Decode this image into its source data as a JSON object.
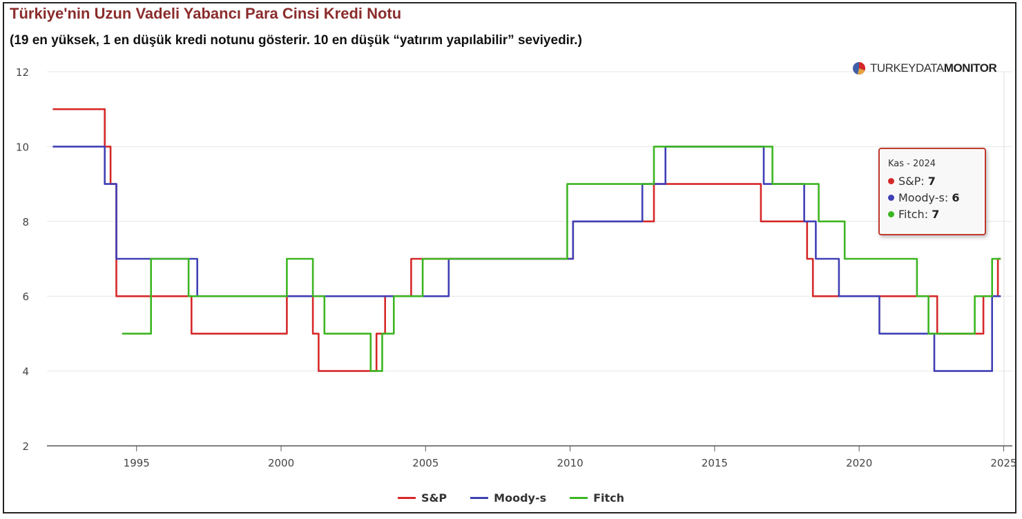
{
  "title": "Türkiye'nin Uzun Vadeli Yabancı Para Cinsi Kredi Notu",
  "subtitle": "(19 en yüksek, 1 en düşük kredi notunu gösterir. 10 en düşük “yatırım yapılabilir” seviyedir.)",
  "logo": {
    "light": "TURKEYDATA",
    "bold": "MONITOR"
  },
  "tooltip": {
    "header": "Kas - 2024",
    "rows": [
      {
        "label": "S&P:",
        "value": "7",
        "color": "#d62728"
      },
      {
        "label": "Moody-s:",
        "value": "6",
        "color": "#3f3fb5"
      },
      {
        "label": "Fitch:",
        "value": "7",
        "color": "#3cb521"
      }
    ]
  },
  "colors": {
    "sp": "#d62728",
    "moodys": "#3f3fb5",
    "fitch": "#3cb521",
    "grid": "#e6e6e6",
    "axis": "#555555"
  },
  "chart_data": {
    "type": "line",
    "step": true,
    "xlim": [
      1991.9,
      2025.3
    ],
    "ylim": [
      2,
      12
    ],
    "x_ticks": [
      "1995",
      "2000",
      "2005",
      "2010",
      "2015",
      "2020",
      "2025"
    ],
    "y_ticks": [
      "2",
      "4",
      "6",
      "8",
      "10",
      "12"
    ],
    "grid": true,
    "legend_position": "bottom",
    "series": [
      {
        "name": "S&P",
        "color": "#d62728",
        "values": [
          [
            1992.1,
            11
          ],
          [
            1993.9,
            10
          ],
          [
            1994.1,
            9
          ],
          [
            1994.3,
            6
          ],
          [
            1996.9,
            5
          ],
          [
            2000.2,
            6
          ],
          [
            2001.1,
            5
          ],
          [
            2001.3,
            4
          ],
          [
            2003.3,
            5
          ],
          [
            2003.6,
            6
          ],
          [
            2004.5,
            7
          ],
          [
            2004.9,
            7
          ],
          [
            2009.1,
            7
          ],
          [
            2010.1,
            8
          ],
          [
            2012.9,
            9
          ],
          [
            2016.6,
            8
          ],
          [
            2018.2,
            7
          ],
          [
            2018.4,
            6
          ],
          [
            2022.7,
            5
          ],
          [
            2024.3,
            6
          ],
          [
            2024.8,
            7
          ],
          [
            2024.9,
            7
          ]
        ]
      },
      {
        "name": "Moody-s",
        "color": "#3f3fb5",
        "values": [
          [
            1992.1,
            10
          ],
          [
            1993.9,
            9
          ],
          [
            1994.3,
            7
          ],
          [
            1997.1,
            6
          ],
          [
            2000.4,
            6
          ],
          [
            2005.8,
            7
          ],
          [
            2010.1,
            8
          ],
          [
            2012.5,
            9
          ],
          [
            2013.3,
            10
          ],
          [
            2016.7,
            9
          ],
          [
            2018.1,
            8
          ],
          [
            2018.5,
            7
          ],
          [
            2019.3,
            6
          ],
          [
            2020.7,
            5
          ],
          [
            2022.6,
            4
          ],
          [
            2024.6,
            6
          ],
          [
            2024.9,
            6
          ]
        ]
      },
      {
        "name": "Fitch",
        "color": "#3cb521",
        "values": [
          [
            1994.5,
            5
          ],
          [
            1995.5,
            7
          ],
          [
            1996.8,
            6
          ],
          [
            2000.2,
            7
          ],
          [
            2001.1,
            6
          ],
          [
            2001.5,
            5
          ],
          [
            2003.1,
            4
          ],
          [
            2003.5,
            5
          ],
          [
            2003.9,
            6
          ],
          [
            2004.9,
            7
          ],
          [
            2009.9,
            9
          ],
          [
            2012.9,
            10
          ],
          [
            2017.0,
            9
          ],
          [
            2018.6,
            8
          ],
          [
            2019.5,
            7
          ],
          [
            2022.0,
            6
          ],
          [
            2022.4,
            5
          ],
          [
            2024.0,
            6
          ],
          [
            2024.6,
            7
          ],
          [
            2024.9,
            7
          ]
        ]
      }
    ]
  }
}
